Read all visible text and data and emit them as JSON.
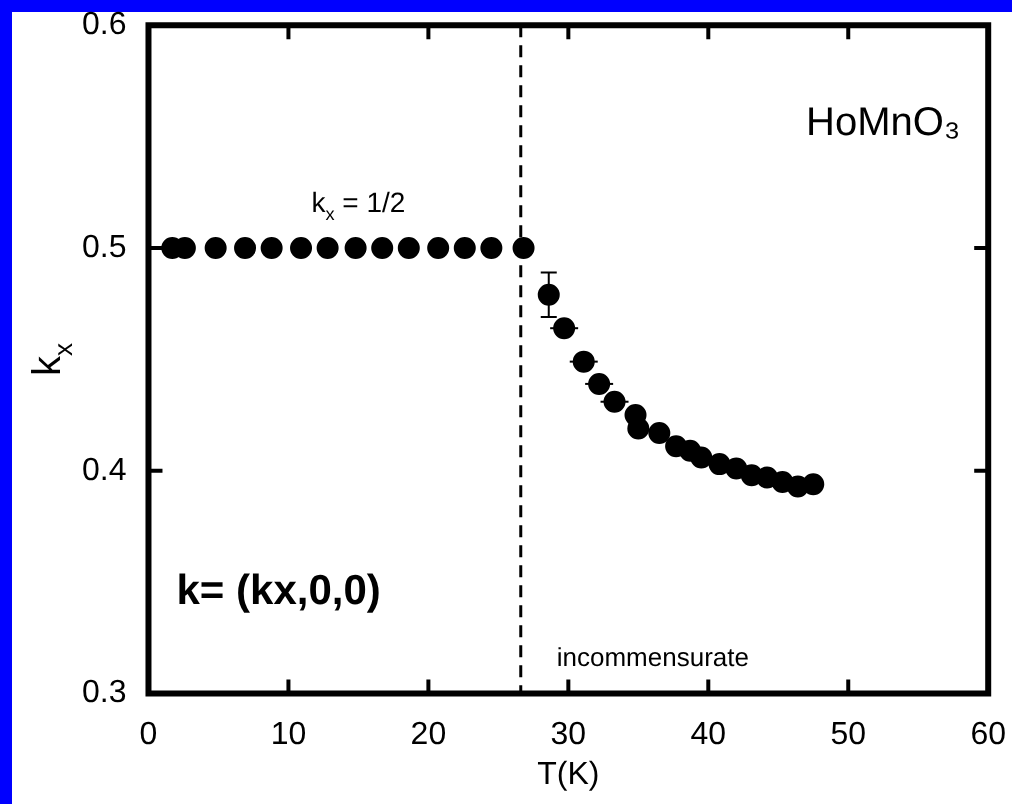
{
  "chart_data": {
    "type": "scatter",
    "xlabel": "T(K)",
    "ylabel": "k$_{x}$",
    "xlim": [
      0,
      60
    ],
    "xticks": [
      0,
      10,
      20,
      30,
      40,
      50,
      60
    ],
    "ylim": [
      0.3,
      0.6
    ],
    "yticks": [
      0.3,
      0.4,
      0.5,
      0.6
    ],
    "grid": false,
    "marker": "circle",
    "legend": false,
    "series": [
      {
        "color": "#000000",
        "x": [
          1.7,
          2.6,
          4.8,
          6.9,
          8.8,
          10.9,
          12.8,
          14.8,
          16.7,
          18.6,
          20.7,
          22.6,
          24.5,
          26.8,
          28.6,
          29.7,
          31.1,
          32.2,
          33.3,
          34.8,
          35.0,
          36.5,
          37.7,
          38.7,
          39.5,
          40.8,
          42.0,
          43.1,
          44.2,
          45.3,
          46.4,
          47.5
        ],
        "values": [
          0.5,
          0.5,
          0.5,
          0.5,
          0.5,
          0.5,
          0.5,
          0.5,
          0.5,
          0.5,
          0.5,
          0.5,
          0.5,
          0.5,
          0.479,
          0.464,
          0.449,
          0.439,
          0.431,
          0.425,
          0.419,
          0.417,
          0.411,
          0.409,
          0.406,
          0.403,
          0.401,
          0.398,
          0.397,
          0.395,
          0.393,
          0.394
        ],
        "errors": [
          null,
          null,
          null,
          null,
          null,
          null,
          null,
          null,
          null,
          null,
          null,
          null,
          null,
          null,
          0.01,
          null,
          null,
          null,
          null,
          null,
          null,
          null,
          null,
          null,
          null,
          null,
          null,
          null,
          null,
          null,
          null,
          null
        ],
        "xerrors": [
          null,
          null,
          null,
          null,
          null,
          null,
          null,
          null,
          null,
          null,
          null,
          null,
          null,
          null,
          null,
          1,
          1,
          1,
          1,
          null,
          null,
          null,
          null,
          null,
          null,
          null,
          null,
          null,
          null,
          null,
          null,
          null
        ]
      }
    ],
    "ref_lines": [
      {
        "axis": "x",
        "value": 26.6,
        "line_style": "dashed",
        "color": "#000000"
      }
    ],
    "annotations": [
      {
        "text": "k$_{x}$ = 1/2",
        "x": 15,
        "y": 0.5
      },
      "HoMnO₃",
      "k= (kx,0,0)",
      "incommensurate"
    ]
  }
}
